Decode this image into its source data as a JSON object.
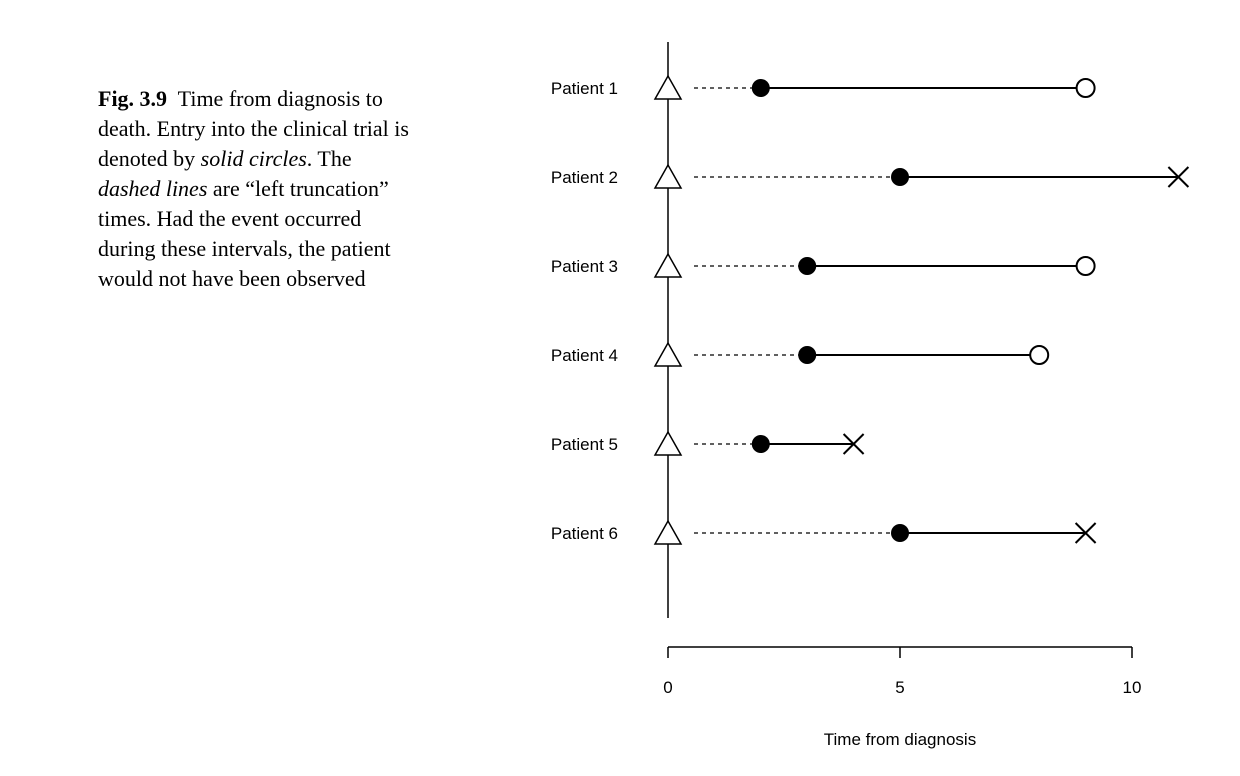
{
  "caption": {
    "figure_label": "Fig. 3.9",
    "text_part1": "Time from diagnosis to death. Entry into the clinical trial is denoted by ",
    "em1": "solid circles",
    "text_part2": ". The ",
    "em2": "dashed lines",
    "text_part3": " are “left truncation” times. Had the event occurred during these intervals, the patient would not have been observed"
  },
  "chart_data": {
    "type": "line",
    "xlabel": "Time from diagnosis",
    "xlim": [
      0,
      10
    ],
    "xticks": [
      0,
      5,
      10
    ],
    "grid": false,
    "marker_meaning": {
      "triangle": "diagnosis",
      "solid_circle": "entry into clinical trial",
      "open_circle": "censored",
      "cross": "death"
    },
    "patients": [
      {
        "label": "Patient 1",
        "diagnosis": 0,
        "entry": 2,
        "end": 9,
        "end_type": "censored"
      },
      {
        "label": "Patient 2",
        "diagnosis": 0,
        "entry": 5,
        "end": 11,
        "end_type": "death"
      },
      {
        "label": "Patient 3",
        "diagnosis": 0,
        "entry": 3,
        "end": 9,
        "end_type": "censored"
      },
      {
        "label": "Patient 4",
        "diagnosis": 0,
        "entry": 3,
        "end": 8,
        "end_type": "censored"
      },
      {
        "label": "Patient 5",
        "diagnosis": 0,
        "entry": 2,
        "end": 4,
        "end_type": "death"
      },
      {
        "label": "Patient 6",
        "diagnosis": 0,
        "entry": 5,
        "end": 9,
        "end_type": "death"
      }
    ]
  }
}
